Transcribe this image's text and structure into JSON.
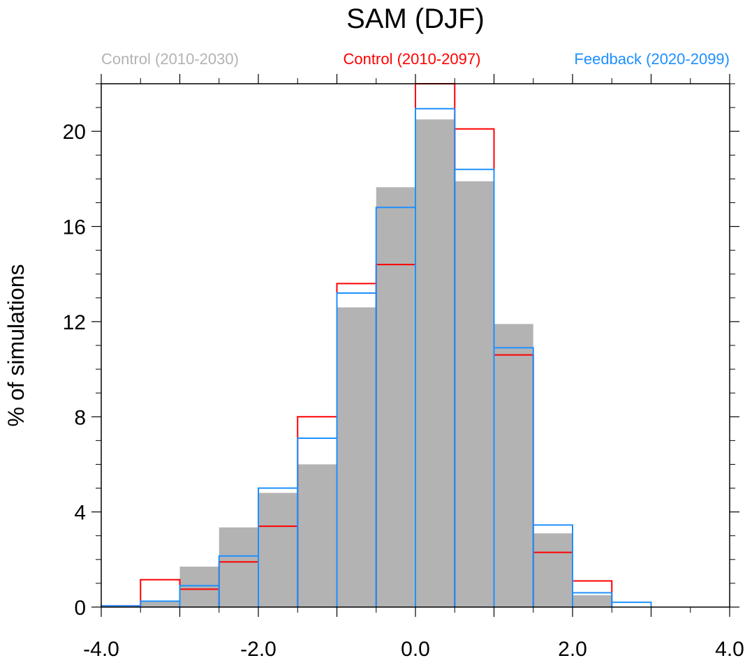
{
  "chart_data": {
    "type": "bar",
    "title": "SAM (DJF)",
    "xlabel": "",
    "ylabel": "% of simulations",
    "xlim": [
      -4.0,
      4.0
    ],
    "ylim": [
      0,
      22
    ],
    "x_ticks": [
      -4.0,
      -3.0,
      -2.0,
      -1.0,
      0.0,
      1.0,
      2.0,
      3.0,
      4.0
    ],
    "x_tick_labels": [
      {
        "value": -4.0,
        "label": "-4.0"
      },
      {
        "value": -2.0,
        "label": "-2.0"
      },
      {
        "value": 0.0,
        "label": "0.0"
      },
      {
        "value": 2.0,
        "label": "2.0"
      },
      {
        "value": 4.0,
        "label": "4.0"
      }
    ],
    "y_ticks": [
      {
        "value": 0,
        "label": "0"
      },
      {
        "value": 4,
        "label": "4"
      },
      {
        "value": 8,
        "label": "8"
      },
      {
        "value": 12,
        "label": "12"
      },
      {
        "value": 16,
        "label": "16"
      },
      {
        "value": 20,
        "label": "20"
      }
    ],
    "bin_edges": [
      -4.0,
      -3.5,
      -3.0,
      -2.5,
      -2.0,
      -1.5,
      -1.0,
      -0.5,
      0.0,
      0.5,
      1.0,
      1.5,
      2.0,
      2.5,
      3.0,
      3.5,
      4.0
    ],
    "series": [
      {
        "name": "Control (2010-2030)",
        "style": "filled",
        "color": "#b3b3b3",
        "values": [
          0.05,
          0.25,
          1.7,
          3.35,
          4.8,
          6.0,
          12.6,
          17.65,
          20.5,
          17.9,
          11.9,
          3.1,
          0.5,
          0.0,
          0.0,
          0.0
        ]
      },
      {
        "name": "Control (2010-2097)",
        "style": "outline",
        "color": "#ff0000",
        "values": [
          0.05,
          1.15,
          0.75,
          1.9,
          3.4,
          8.0,
          13.6,
          14.4,
          22.0,
          20.1,
          10.6,
          2.3,
          1.1,
          0.0,
          0.0,
          0.0
        ]
      },
      {
        "name": "Feedback (2020-2099)",
        "style": "outline",
        "color": "#1e90ff",
        "values": [
          0.05,
          0.25,
          0.9,
          2.15,
          5.0,
          7.1,
          13.2,
          16.8,
          20.95,
          18.4,
          10.9,
          3.45,
          0.6,
          0.2,
          0.0,
          0.0
        ]
      }
    ],
    "legend": {
      "placement": "top",
      "entries": [
        {
          "label": "Control (2010-2030)",
          "color": "#b3b3b3"
        },
        {
          "label": "Control (2010-2097)",
          "color": "#ff0000"
        },
        {
          "label": "Feedback (2020-2099)",
          "color": "#1e90ff"
        }
      ]
    }
  }
}
